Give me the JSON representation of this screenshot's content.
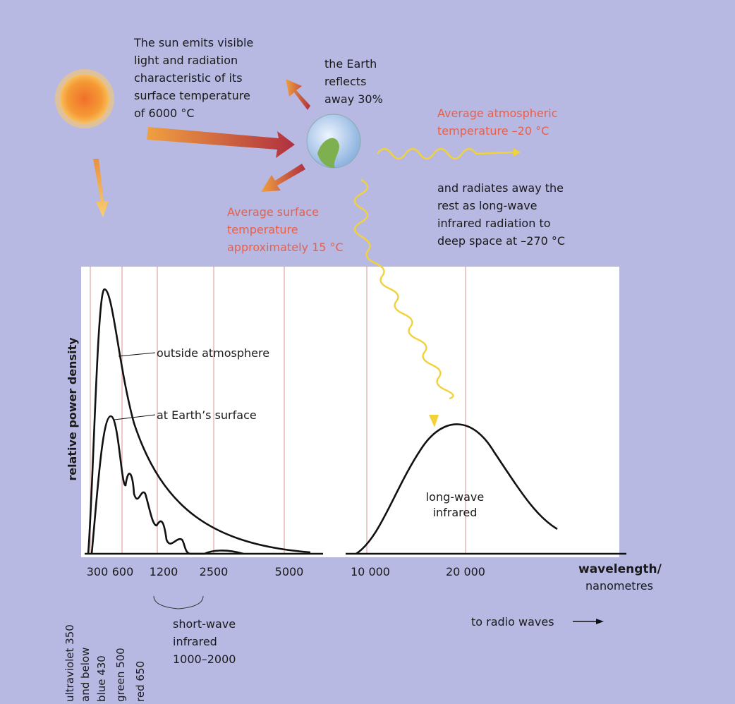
{
  "sun_text": [
    "The sun emits visible",
    "light and radiation",
    "characteristic of its",
    "surface temperature",
    "of 6000 °C"
  ],
  "earth_text": [
    "the Earth",
    "reflects",
    "away 30%"
  ],
  "atmosphere_text": [
    "Average atmospheric",
    "temperature –20 °C"
  ],
  "radiates_text": [
    "and radiates away the",
    "rest as long-wave",
    "infrared radiation to",
    "deep space at –270 °C"
  ],
  "surface_text": [
    "Average surface",
    "temperature",
    "approximately 15 °C"
  ],
  "chart": {
    "y_label": "relative power density",
    "curve_labels": [
      "outside atmosphere",
      "at Earth’s surface"
    ],
    "longwave_label": [
      "long-wave",
      "infrared"
    ],
    "x_ticks": [
      "300",
      "600",
      "1200",
      "2500",
      "5000",
      "10 000",
      "20 000"
    ],
    "x_label": [
      "wavelength/",
      "nanometres"
    ],
    "band_labels": [
      "ultraviolet 350",
      "and below",
      "blue 430",
      "green 500",
      "red 650"
    ],
    "shortwave_label": [
      "short-wave",
      "infrared",
      "1000–2000"
    ],
    "radio_label": "to radio waves"
  }
}
